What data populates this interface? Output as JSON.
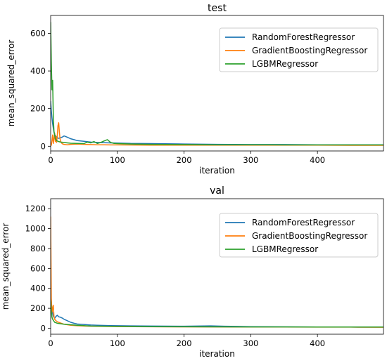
{
  "chart_data": [
    {
      "type": "line",
      "title": "test",
      "xlabel": "iteration",
      "ylabel": "mean_squared_error",
      "xlim": [
        0,
        499
      ],
      "ylim": [
        -25,
        695
      ],
      "xticks": [
        0,
        100,
        200,
        300,
        400
      ],
      "yticks": [
        0,
        200,
        400,
        600
      ],
      "grid": false,
      "legend_position": "top-right",
      "series": [
        {
          "name": "RandomForestRegressor",
          "color": "#1f77b4",
          "x": [
            0,
            1,
            2,
            3,
            4,
            5,
            6,
            8,
            10,
            12,
            15,
            18,
            20,
            25,
            30,
            35,
            40,
            50,
            60,
            70,
            80,
            90,
            100,
            110,
            120,
            150,
            200,
            250,
            300,
            350,
            400,
            450,
            499
          ],
          "y": [
            240,
            190,
            150,
            120,
            95,
            75,
            62,
            52,
            45,
            42,
            45,
            50,
            55,
            48,
            40,
            35,
            30,
            26,
            22,
            20,
            19,
            18,
            17,
            16,
            15,
            14,
            12,
            10,
            9,
            9,
            8,
            8,
            8
          ]
        },
        {
          "name": "GradientBoostingRegressor",
          "color": "#ff7f0e",
          "x": [
            0,
            1,
            2,
            3,
            4,
            5,
            6,
            7,
            8,
            9,
            10,
            11,
            12,
            13,
            14,
            15,
            16,
            17,
            18,
            20,
            25,
            30,
            40,
            50,
            60,
            70,
            80,
            90,
            100,
            150,
            200,
            250,
            300,
            350,
            400,
            450,
            499
          ],
          "y": [
            20,
            5,
            30,
            60,
            15,
            40,
            70,
            25,
            50,
            20,
            60,
            110,
            125,
            80,
            40,
            25,
            20,
            15,
            12,
            10,
            8,
            10,
            12,
            10,
            9,
            8,
            8,
            7,
            7,
            6,
            6,
            6,
            6,
            6,
            6,
            5,
            5
          ],
          "connect": true
        },
        {
          "name": "LGBMRegressor",
          "color": "#2ca02c",
          "x": [
            0,
            1,
            2,
            3,
            4,
            5,
            6,
            7,
            8,
            9,
            10,
            12,
            15,
            20,
            25,
            30,
            40,
            50,
            55,
            60,
            65,
            70,
            75,
            80,
            85,
            90,
            95,
            100,
            120,
            150,
            200,
            250,
            300,
            350,
            400,
            450,
            499
          ],
          "y": [
            660,
            450,
            300,
            350,
            150,
            80,
            60,
            40,
            35,
            30,
            28,
            25,
            22,
            20,
            18,
            16,
            15,
            14,
            22,
            18,
            25,
            15,
            20,
            28,
            35,
            20,
            15,
            14,
            12,
            10,
            9,
            8,
            8,
            7,
            7,
            7,
            7
          ]
        }
      ]
    },
    {
      "type": "line",
      "title": "val",
      "xlabel": "iteration",
      "ylabel": "mean_squared_error",
      "xlim": [
        0,
        499
      ],
      "ylim": [
        -60,
        1300
      ],
      "xticks": [
        0,
        100,
        200,
        300,
        400
      ],
      "yticks": [
        0,
        200,
        400,
        600,
        800,
        1000,
        1200
      ],
      "grid": false,
      "legend_position": "top-right",
      "series": [
        {
          "name": "RandomForestRegressor",
          "color": "#1f77b4",
          "x": [
            0,
            1,
            2,
            3,
            4,
            5,
            6,
            8,
            10,
            12,
            15,
            18,
            20,
            25,
            30,
            35,
            40,
            50,
            60,
            70,
            80,
            90,
            100,
            120,
            150,
            200,
            220,
            240,
            260,
            280,
            300,
            350,
            400,
            450,
            499
          ],
          "y": [
            350,
            260,
            180,
            150,
            120,
            110,
            100,
            120,
            130,
            115,
            110,
            100,
            90,
            75,
            60,
            50,
            42,
            38,
            32,
            30,
            28,
            26,
            25,
            24,
            22,
            20,
            22,
            24,
            20,
            18,
            16,
            14,
            12,
            12,
            11
          ]
        },
        {
          "name": "GradientBoostingRegressor",
          "color": "#ff7f0e",
          "x": [
            0,
            1,
            2,
            3,
            4,
            5,
            6,
            8,
            10,
            15,
            20,
            30,
            40,
            50,
            60,
            80,
            100,
            150,
            200,
            250,
            300,
            350,
            400,
            450,
            499
          ],
          "y": [
            1120,
            300,
            160,
            200,
            230,
            120,
            90,
            75,
            65,
            52,
            40,
            30,
            25,
            22,
            20,
            18,
            17,
            15,
            14,
            13,
            12,
            12,
            11,
            11,
            10
          ]
        },
        {
          "name": "LGBMRegressor",
          "color": "#2ca02c",
          "x": [
            0,
            1,
            2,
            3,
            4,
            5,
            6,
            8,
            10,
            15,
            20,
            30,
            40,
            50,
            60,
            80,
            100,
            150,
            200,
            250,
            300,
            350,
            400,
            450,
            499
          ],
          "y": [
            280,
            170,
            110,
            90,
            80,
            70,
            60,
            55,
            50,
            45,
            40,
            35,
            30,
            26,
            22,
            20,
            18,
            16,
            15,
            14,
            13,
            13,
            12,
            12,
            12
          ]
        }
      ]
    }
  ]
}
